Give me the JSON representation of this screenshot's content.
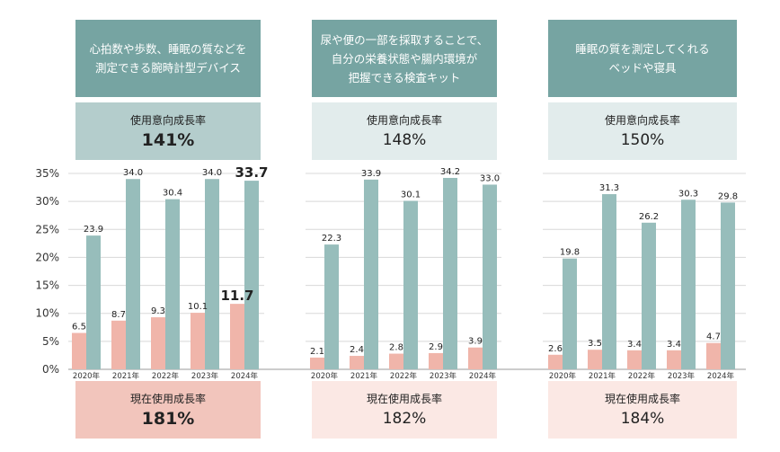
{
  "panels": [
    {
      "title_lines": [
        "心拍数や歩数、睡眠の質などを",
        "測定できる腕時計型デバイス"
      ],
      "intention_label": "使用意向成長率",
      "intention_growth": "141%",
      "current_label": "現在使用成長率",
      "current_growth": "181%"
    },
    {
      "title_lines": [
        "尿や便の一部を採取することで、",
        "自分の栄養状態や腸内環境が",
        "把握できる検査キット"
      ],
      "intention_label": "使用意向成長率",
      "intention_growth": "148%",
      "current_label": "現在使用成長率",
      "current_growth": "182%"
    },
    {
      "title_lines": [
        "睡眠の質を測定してくれる",
        "ベッドや寝具"
      ],
      "intention_label": "使用意向成長率",
      "intention_growth": "150%",
      "current_label": "現在使用成長率",
      "current_growth": "184%"
    }
  ],
  "colors": {
    "header_bg": "#76a4a2",
    "intention_strong": "#b4cdcc",
    "intention_light": "#e2ecec",
    "current_strong": "#f2c5bc",
    "current_light": "#fbe8e4",
    "bar_intention": "#97bdbb",
    "bar_current": "#f0b5aa",
    "grid": "#d8d8d8"
  },
  "chart_data": {
    "type": "bar",
    "ylim": [
      0,
      35
    ],
    "yticks": [
      "0%",
      "5%",
      "10%",
      "15%",
      "20%",
      "25%",
      "30%",
      "35%"
    ],
    "categories": [
      "2020年",
      "2021年",
      "2022年",
      "2023年",
      "2024年"
    ],
    "panels": [
      {
        "series": [
          {
            "values": [
              6.5,
              8.7,
              9.3,
              10.1,
              11.7
            ]
          },
          {
            "values": [
              23.9,
              34.0,
              30.4,
              34.0,
              33.7
            ]
          }
        ],
        "labels": [
          [
            "6.5",
            "8.7",
            "9.3",
            "10.1",
            "11.7"
          ],
          [
            "23.9",
            "34.0",
            "30.4",
            "34.0",
            "33.7"
          ]
        ]
      },
      {
        "series": [
          {
            "values": [
              2.1,
              2.4,
              2.8,
              2.9,
              3.9
            ]
          },
          {
            "values": [
              22.3,
              33.9,
              30.1,
              34.2,
              33.0
            ]
          }
        ],
        "labels": [
          [
            "2.1",
            "2.4",
            "2.8",
            "2.9",
            "3.9"
          ],
          [
            "22.3",
            "33.9",
            "30.1",
            "34.2",
            "33.0"
          ]
        ]
      },
      {
        "series": [
          {
            "values": [
              2.6,
              3.5,
              3.4,
              3.4,
              4.7
            ]
          },
          {
            "values": [
              19.8,
              31.3,
              26.2,
              30.3,
              29.8
            ]
          }
        ],
        "labels": [
          [
            "2.6",
            "3.5",
            "3.4",
            "3.4",
            "4.7"
          ],
          [
            "19.8",
            "31.3",
            "26.2",
            "30.3",
            "29.8"
          ]
        ]
      }
    ]
  }
}
